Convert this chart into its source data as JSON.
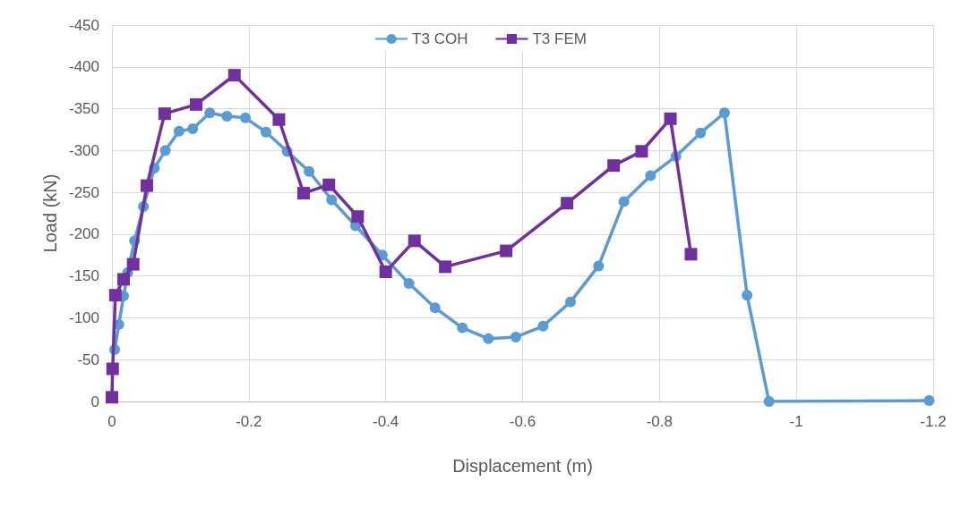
{
  "chart_data": {
    "type": "line",
    "xlabel": "Displacement (m)",
    "ylabel": "Load (kN)",
    "xlim": [
      0,
      -1.2
    ],
    "xticks": [
      0,
      -0.2,
      -0.4,
      -0.6,
      -0.8,
      -1,
      -1.2
    ],
    "ylim": [
      0,
      -450
    ],
    "yticks": [
      0,
      -50,
      -100,
      -150,
      -200,
      -250,
      -300,
      -350,
      -400,
      -450
    ],
    "grid": true,
    "legend": "top",
    "series": [
      {
        "name": "T3 COH",
        "color": "#5b9bd5",
        "marker": "circle",
        "x": [
          -0.004,
          -0.01,
          -0.017,
          -0.023,
          -0.033,
          -0.046,
          -0.062,
          -0.078,
          -0.098,
          -0.118,
          -0.143,
          -0.168,
          -0.195,
          -0.225,
          -0.256,
          -0.288,
          -0.321,
          -0.356,
          -0.395,
          -0.434,
          -0.472,
          -0.512,
          -0.55,
          -0.59,
          -0.63,
          -0.67,
          -0.711,
          -0.748,
          -0.787,
          -0.824,
          -0.86,
          -0.895,
          -0.928,
          -0.96,
          -1.194
        ],
        "values": [
          -62,
          -92,
          -126,
          -154,
          -192,
          -233,
          -279,
          -300,
          -323,
          -326,
          -345,
          -341,
          -339,
          -322,
          -299,
          -275,
          -241,
          -210,
          -175,
          -141,
          -112,
          -88,
          -75,
          -77,
          -90,
          -119,
          -162,
          -239,
          -270,
          -293,
          -321,
          -345,
          -127,
          0,
          -1
        ]
      },
      {
        "name": "T3 FEM",
        "color": "#7030a0",
        "marker": "square",
        "x": [
          0,
          -0.001,
          -0.005,
          -0.017,
          -0.031,
          -0.051,
          -0.077,
          -0.123,
          -0.179,
          -0.244,
          -0.28,
          -0.317,
          -0.359,
          -0.4,
          -0.442,
          -0.487,
          -0.576,
          -0.665,
          -0.733,
          -0.774,
          -0.816,
          -0.846
        ],
        "values": [
          -5,
          -39,
          -127,
          -146,
          -164,
          -258,
          -344,
          -355,
          -390,
          -337,
          -249,
          -259,
          -221,
          -155,
          -192,
          -161,
          -180,
          -237,
          -282,
          -299,
          -338,
          -176
        ]
      }
    ]
  }
}
